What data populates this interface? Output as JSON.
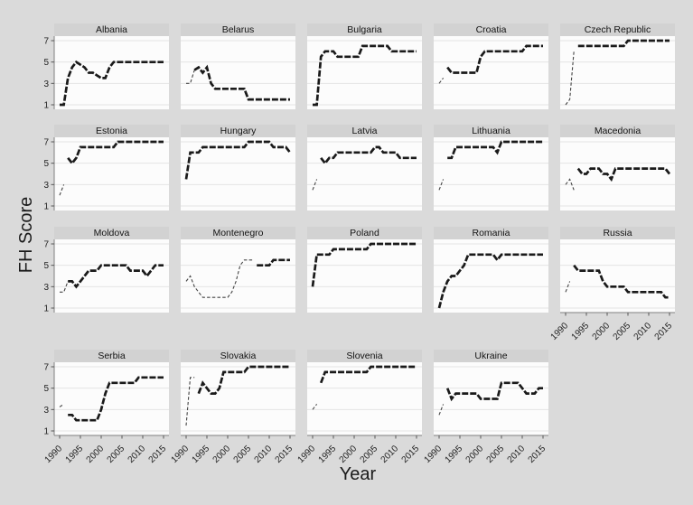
{
  "chart_data": {
    "type": "line",
    "layout": "small-multiples grid, 5 columns x 4 rows (last row 4 panels)",
    "title": "",
    "ylabel": "FH Score",
    "xlabel": "Year",
    "ylim": [
      1,
      7
    ],
    "y_ticks": [
      1,
      3,
      5,
      7
    ],
    "x_ticks": [
      1990,
      1995,
      2000,
      2005,
      2010,
      2015
    ],
    "x_range": [
      1990,
      2015
    ],
    "grid": "horizontal gridlines at y ticks",
    "line_style": "thick dark dashed line; thin light dashed line for early (pre-independence) period",
    "colors": {
      "page_bg": "#dadada",
      "plot_bg": "#fcfcfc",
      "strip_bg": "#d2d2d2",
      "grid": "#e4e4e4",
      "axis": "#808080",
      "tick_text": "#222222",
      "line_main": "#1a1a1a",
      "line_pre": "#444444"
    },
    "panels": [
      {
        "country": "Albania",
        "start_year": 1990,
        "values": [
          1,
          1,
          3.5,
          4.5,
          5,
          4.75,
          4.5,
          4,
          4,
          3.75,
          3.5,
          3.5,
          4.5,
          5,
          5,
          5,
          5,
          5,
          5,
          5,
          5,
          5,
          5,
          5,
          5,
          5
        ],
        "pre": null
      },
      {
        "country": "Belarus",
        "start_year": 1992,
        "values": [
          4.25,
          4.5,
          4,
          4.5,
          3,
          2.5,
          2.5,
          2.5,
          2.5,
          2.5,
          2.5,
          2.5,
          2.5,
          1.5,
          1.5,
          1.5,
          1.5,
          1.5,
          1.5,
          1.5,
          1.5,
          1.5,
          1.5,
          1.5
        ],
        "pre": {
          "start_year": 1990,
          "values": [
            3,
            3,
            4.25
          ]
        }
      },
      {
        "country": "Bulgaria",
        "start_year": 1990,
        "values": [
          1,
          1,
          5.5,
          6,
          6,
          6,
          5.5,
          5.5,
          5.5,
          5.5,
          5.5,
          5.5,
          6.5,
          6.5,
          6.5,
          6.5,
          6.5,
          6.5,
          6.5,
          6,
          6,
          6,
          6,
          6,
          6,
          6
        ],
        "pre": null
      },
      {
        "country": "Croatia",
        "start_year": 1992,
        "values": [
          4.5,
          4,
          4,
          4,
          4,
          4,
          4,
          4,
          5.5,
          6,
          6,
          6,
          6,
          6,
          6,
          6,
          6,
          6,
          6,
          6.5,
          6.5,
          6.5,
          6.5,
          6.5
        ],
        "pre": {
          "start_year": 1990,
          "values": [
            3,
            3.5
          ]
        }
      },
      {
        "country": "Czech Republic",
        "start_year": 1993,
        "values": [
          6.5,
          6.5,
          6.5,
          6.5,
          6.5,
          6.5,
          6.5,
          6.5,
          6.5,
          6.5,
          6.5,
          6.5,
          7,
          7,
          7,
          7,
          7,
          7,
          7,
          7,
          7,
          7,
          7
        ],
        "pre": {
          "start_year": 1990,
          "values": [
            1,
            1.5,
            6
          ]
        }
      },
      {
        "country": "Estonia",
        "start_year": 1992,
        "values": [
          5.5,
          5,
          5.5,
          6.5,
          6.5,
          6.5,
          6.5,
          6.5,
          6.5,
          6.5,
          6.5,
          6.5,
          7,
          7,
          7,
          7,
          7,
          7,
          7,
          7,
          7,
          7,
          7,
          7
        ],
        "pre": {
          "start_year": 1990,
          "values": [
            2,
            3
          ]
        }
      },
      {
        "country": "Hungary",
        "start_year": 1990,
        "values": [
          3.5,
          6,
          6,
          6,
          6.5,
          6.5,
          6.5,
          6.5,
          6.5,
          6.5,
          6.5,
          6.5,
          6.5,
          6.5,
          6.5,
          7,
          7,
          7,
          7,
          7,
          7,
          6.5,
          6.5,
          6.5,
          6.5,
          6
        ],
        "pre": null
      },
      {
        "country": "Latvia",
        "start_year": 1992,
        "values": [
          5.5,
          5,
          5.5,
          5.5,
          6,
          6,
          6,
          6,
          6,
          6,
          6,
          6,
          6,
          6.5,
          6.5,
          6,
          6,
          6,
          6,
          5.5,
          5.5,
          5.5,
          5.5,
          5.5
        ],
        "pre": {
          "start_year": 1990,
          "values": [
            2.5,
            3.5
          ]
        }
      },
      {
        "country": "Lithuania",
        "start_year": 1992,
        "values": [
          5.5,
          5.5,
          6.5,
          6.5,
          6.5,
          6.5,
          6.5,
          6.5,
          6.5,
          6.5,
          6.5,
          6.5,
          6,
          7,
          7,
          7,
          7,
          7,
          7,
          7,
          7,
          7,
          7,
          7
        ],
        "pre": {
          "start_year": 1990,
          "values": [
            2.5,
            3.5
          ]
        }
      },
      {
        "country": "Macedonia",
        "start_year": 1993,
        "values": [
          4.5,
          4,
          4,
          4.5,
          4.5,
          4.5,
          4,
          4,
          3.5,
          4.5,
          4.5,
          4.5,
          4.5,
          4.5,
          4.5,
          4.5,
          4.5,
          4.5,
          4.5,
          4.5,
          4.5,
          4.5,
          4
        ],
        "pre": {
          "start_year": 1990,
          "values": [
            3,
            3.5,
            2.5
          ]
        }
      },
      {
        "country": "Moldova",
        "start_year": 1992,
        "values": [
          3.5,
          3.5,
          3,
          3.5,
          4,
          4.5,
          4.5,
          4.5,
          5,
          5,
          5,
          5,
          5,
          5,
          5,
          4.5,
          4.5,
          4.5,
          4.5,
          4,
          4.5,
          5,
          5,
          5
        ],
        "pre": {
          "start_year": 1990,
          "values": [
            2.5,
            2.5,
            3.5
          ]
        }
      },
      {
        "country": "Montenegro",
        "start_year": 2007,
        "values": [
          5,
          5,
          5,
          5,
          5.5,
          5.5,
          5.5,
          5.5,
          5.5
        ],
        "pre": {
          "start_year": 1990,
          "values": [
            3.5,
            4,
            3,
            2.5,
            2,
            2,
            2,
            2,
            2,
            2,
            2,
            2.5,
            3.5,
            5,
            5.5,
            5.5,
            5.5
          ]
        }
      },
      {
        "country": "Poland",
        "start_year": 1990,
        "values": [
          3,
          6,
          6,
          6,
          6,
          6.5,
          6.5,
          6.5,
          6.5,
          6.5,
          6.5,
          6.5,
          6.5,
          6.5,
          7,
          7,
          7,
          7,
          7,
          7,
          7,
          7,
          7,
          7,
          7,
          7
        ],
        "pre": null
      },
      {
        "country": "Romania",
        "start_year": 1990,
        "values": [
          1,
          2.5,
          3.5,
          4,
          4,
          4.5,
          5,
          6,
          6,
          6,
          6,
          6,
          6,
          6,
          5.5,
          6,
          6,
          6,
          6,
          6,
          6,
          6,
          6,
          6,
          6,
          6
        ],
        "pre": null
      },
      {
        "country": "Russia",
        "start_year": 1992,
        "values": [
          5,
          4.5,
          4.5,
          4.5,
          4.5,
          4.5,
          4.5,
          3.5,
          3,
          3,
          3,
          3,
          3,
          2.5,
          2.5,
          2.5,
          2.5,
          2.5,
          2.5,
          2.5,
          2.5,
          2.5,
          2,
          2
        ],
        "pre": {
          "start_year": 1990,
          "values": [
            2.5,
            3.5
          ]
        }
      },
      {
        "country": "Serbia",
        "start_year": 1992,
        "values": [
          2.5,
          2.5,
          2,
          2,
          2,
          2,
          2,
          2,
          3,
          4.5,
          5.5,
          5.5,
          5.5,
          5.5,
          5.5,
          5.5,
          5.5,
          6,
          6,
          6,
          6,
          6,
          6,
          6
        ],
        "pre": {
          "start_year": 1990,
          "values": [
            3.25,
            3.5
          ]
        }
      },
      {
        "country": "Slovakia",
        "start_year": 1993,
        "values": [
          4.5,
          5.5,
          5,
          4.5,
          4.5,
          5,
          6.5,
          6.5,
          6.5,
          6.5,
          6.5,
          6.5,
          7,
          7,
          7,
          7,
          7,
          7,
          7,
          7,
          7,
          7,
          7
        ],
        "pre": {
          "start_year": 1990,
          "values": [
            1.5,
            6,
            6
          ]
        }
      },
      {
        "country": "Slovenia",
        "start_year": 1992,
        "values": [
          5.5,
          6.5,
          6.5,
          6.5,
          6.5,
          6.5,
          6.5,
          6.5,
          6.5,
          6.5,
          6.5,
          6.5,
          7,
          7,
          7,
          7,
          7,
          7,
          7,
          7,
          7,
          7,
          7,
          7
        ],
        "pre": {
          "start_year": 1990,
          "values": [
            3,
            3.5
          ]
        }
      },
      {
        "country": "Ukraine",
        "start_year": 1992,
        "values": [
          5,
          4,
          4.5,
          4.5,
          4.5,
          4.5,
          4.5,
          4.5,
          4,
          4,
          4,
          4,
          4,
          5.5,
          5.5,
          5.5,
          5.5,
          5.5,
          5,
          4.5,
          4.5,
          4.5,
          5,
          5
        ],
        "pre": {
          "start_year": 1990,
          "values": [
            2.5,
            3.5
          ]
        }
      }
    ]
  }
}
